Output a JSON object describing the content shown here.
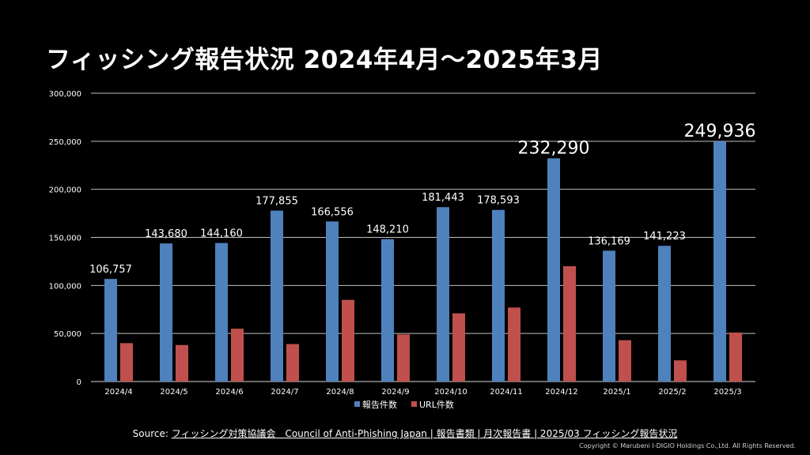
{
  "header": {
    "title": "フィッシング報告状況 2024年4月～2025年3月"
  },
  "chart_data": {
    "type": "bar",
    "title": "フィッシング報告状況 2024年4月～2025年3月",
    "categories": [
      "2024/4",
      "2024/5",
      "2024/6",
      "2024/7",
      "2024/8",
      "2024/9",
      "2024/10",
      "2024/11",
      "2024/12",
      "2025/1",
      "2025/2",
      "2025/3"
    ],
    "series": [
      {
        "name": "報告件数",
        "color": "#4f81bd",
        "values": [
          106757,
          143680,
          144160,
          177855,
          166556,
          148210,
          181443,
          178593,
          232290,
          136169,
          141223,
          249936
        ],
        "data_labels": [
          "106,757",
          "143,680",
          "144,160",
          "177,855",
          "166,556",
          "148,210",
          "181,443",
          "178,593",
          "232,290",
          "136,169",
          "141,223",
          "249,936"
        ]
      },
      {
        "name": "URL件数",
        "color": "#c0504d",
        "values": [
          40000,
          38000,
          55000,
          39000,
          85000,
          49000,
          71000,
          77000,
          120000,
          43000,
          22000,
          51000
        ]
      }
    ],
    "ylim": [
      0,
      300000
    ],
    "yticks": [
      "0",
      "50,000",
      "100,000",
      "150,000",
      "200,000",
      "250,000",
      "300,000"
    ],
    "ytick_values": [
      0,
      50000,
      100000,
      150000,
      200000,
      250000,
      300000
    ],
    "highlight_labels": [
      "232,290",
      "249,936"
    ],
    "grid": true,
    "legend_position": "bottom"
  },
  "footer": {
    "source_prefix": "Source: ",
    "source_link": "フィッシング対策協議会　Council of Anti-Phishing Japan | 報告書類 | 月次報告書 | 2025/03 フィッシング報告状況",
    "copyright": "Copyright © Marubeni I-DIGIO Holdings Co.,Ltd. All Rights Reserved."
  }
}
